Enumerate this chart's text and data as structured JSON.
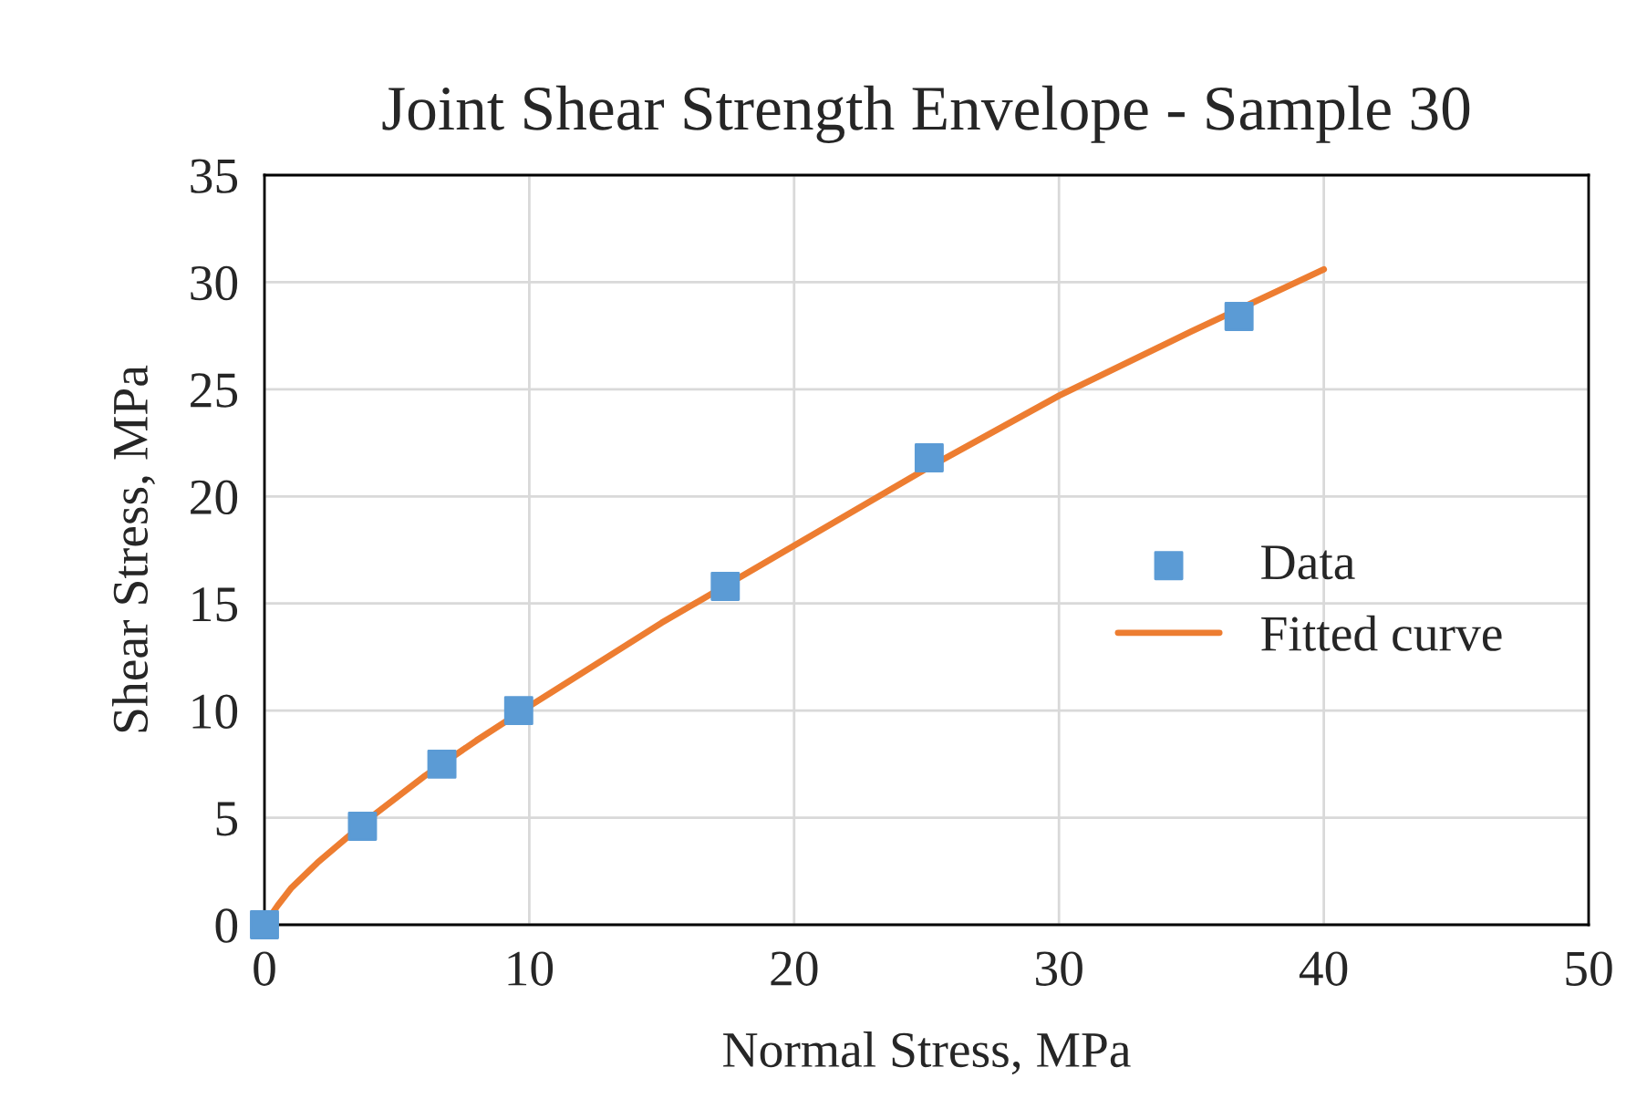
{
  "chart_data": {
    "type": "scatter",
    "title": "Joint Shear Strength Envelope - Sample 30",
    "xlabel": "Normal Stress, MPa",
    "ylabel": "Shear Stress, MPa",
    "series": [
      {
        "name": "Data",
        "color": "#5b9bd5",
        "marker": "square",
        "x": [
          0,
          3.7,
          6.7,
          9.6,
          17.4,
          25.1,
          36.8
        ],
        "values": [
          0,
          4.6,
          7.5,
          10.0,
          15.8,
          21.8,
          28.4
        ]
      },
      {
        "name": "Fitted curve",
        "type": "line",
        "color": "#ed7d31",
        "marker": "none",
        "x": [
          0,
          0.5,
          1,
          2,
          4,
          6,
          8,
          10,
          15,
          20,
          25,
          30,
          35,
          40
        ],
        "values": [
          0,
          0.9,
          1.7,
          2.9,
          5.0,
          6.9,
          8.6,
          10.2,
          14.1,
          17.7,
          21.3,
          24.7,
          27.7,
          30.6
        ]
      }
    ],
    "xlim": [
      0,
      50
    ],
    "xticks": [
      0,
      10,
      20,
      30,
      40,
      50
    ],
    "ylim": [
      0,
      35
    ],
    "yticks": [
      0,
      5,
      10,
      15,
      20,
      25,
      30,
      35
    ],
    "grid": true,
    "legend": "right"
  }
}
